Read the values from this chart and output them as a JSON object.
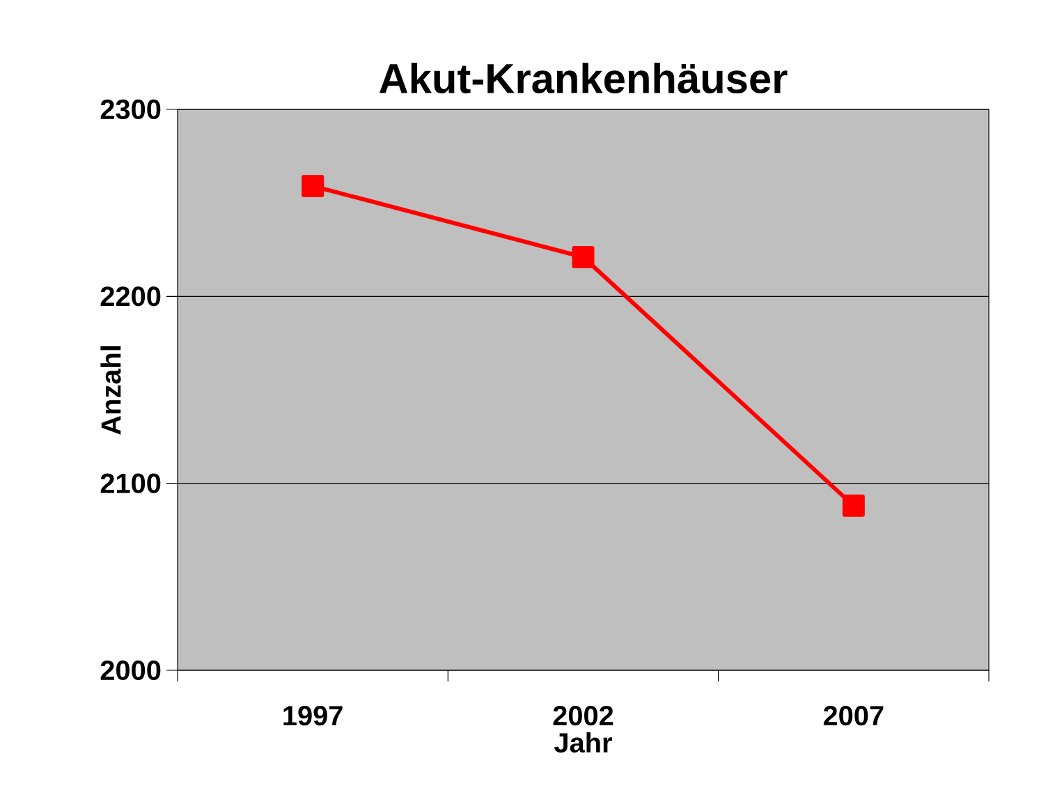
{
  "chart_data": {
    "type": "line",
    "title": "Akut-Krankenhäuser",
    "xlabel": "Jahr",
    "ylabel": "Anzahl",
    "categories": [
      "1997",
      "2002",
      "2007"
    ],
    "series": [
      {
        "color": "#ff0000",
        "values": [
          2259,
          2221,
          2088
        ]
      }
    ],
    "ylim": [
      2000,
      2300
    ],
    "yticks": [
      2000,
      2100,
      2200,
      2300
    ],
    "grid": "y",
    "marker": "square",
    "line_style": "solid"
  }
}
